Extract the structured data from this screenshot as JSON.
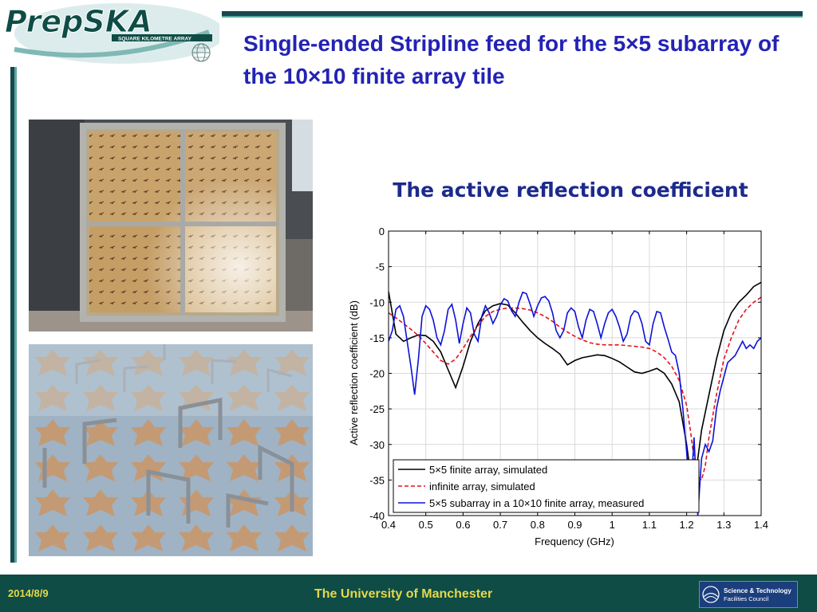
{
  "logo": {
    "name": "PrepSKA",
    "tagline": "SQUARE KILOMETRE ARRAY"
  },
  "slide": {
    "title": "Single-ended Stripline feed for the 5×5 subarray of the 10×10 finite array tile"
  },
  "chart_heading": "The active reflection coefficient",
  "chart_data": {
    "type": "line",
    "xlabel": "Frequency (GHz)",
    "ylabel": "Active reflection coefficient (dB)",
    "xlim": [
      0.4,
      1.4
    ],
    "ylim": [
      -40,
      0
    ],
    "xticks": [
      "0.4",
      "0.5",
      "0.6",
      "0.7",
      "0.8",
      "0.9",
      "1",
      "1.1",
      "1.2",
      "1.3",
      "1.4"
    ],
    "yticks": [
      "0",
      "-5",
      "-10",
      "-15",
      "-20",
      "-25",
      "-30",
      "-35",
      "-40"
    ],
    "grid": true,
    "legend_position": "bottom-left",
    "series": [
      {
        "name": "5×5 finite array, simulated",
        "color": "#000000",
        "style": "solid",
        "x": [
          0.4,
          0.42,
          0.44,
          0.46,
          0.48,
          0.5,
          0.52,
          0.54,
          0.56,
          0.58,
          0.6,
          0.62,
          0.64,
          0.66,
          0.68,
          0.7,
          0.72,
          0.74,
          0.76,
          0.78,
          0.8,
          0.82,
          0.84,
          0.86,
          0.88,
          0.9,
          0.92,
          0.94,
          0.96,
          0.98,
          1.0,
          1.02,
          1.04,
          1.06,
          1.08,
          1.1,
          1.12,
          1.14,
          1.16,
          1.18,
          1.2,
          1.21,
          1.22,
          1.23,
          1.24,
          1.26,
          1.28,
          1.3,
          1.32,
          1.34,
          1.36,
          1.38,
          1.4
        ],
        "y": [
          -8.5,
          -14.5,
          -15.5,
          -15,
          -14.6,
          -14.7,
          -15.5,
          -17,
          -19.5,
          -22,
          -19,
          -15.5,
          -13,
          -11.2,
          -10.5,
          -10.2,
          -10.4,
          -11.5,
          -12.8,
          -14,
          -15,
          -15.8,
          -16.5,
          -17.3,
          -18.8,
          -18.2,
          -17.8,
          -17.6,
          -17.4,
          -17.5,
          -17.9,
          -18.4,
          -19.1,
          -19.8,
          -20,
          -19.7,
          -19.3,
          -20,
          -21.5,
          -24,
          -30,
          -34,
          -35,
          -32,
          -28,
          -23,
          -18,
          -14,
          -11.5,
          -10,
          -9,
          -7.8,
          -7.2
        ]
      },
      {
        "name": "infinite array, simulated",
        "color": "#e0141d",
        "style": "dashed",
        "x": [
          0.4,
          0.42,
          0.44,
          0.46,
          0.48,
          0.5,
          0.52,
          0.54,
          0.56,
          0.58,
          0.6,
          0.62,
          0.64,
          0.66,
          0.68,
          0.7,
          0.72,
          0.74,
          0.76,
          0.78,
          0.8,
          0.82,
          0.84,
          0.86,
          0.88,
          0.9,
          0.92,
          0.94,
          0.96,
          0.98,
          1.0,
          1.02,
          1.04,
          1.06,
          1.08,
          1.1,
          1.12,
          1.14,
          1.16,
          1.18,
          1.2,
          1.21,
          1.22,
          1.23,
          1.24,
          1.25,
          1.26,
          1.28,
          1.3,
          1.32,
          1.34,
          1.36,
          1.38,
          1.4
        ],
        "y": [
          -11.5,
          -12.2,
          -13,
          -13.8,
          -14.7,
          -15.8,
          -17,
          -18.2,
          -18.7,
          -18,
          -16.5,
          -14.8,
          -13.3,
          -12,
          -11.3,
          -11,
          -10.8,
          -10.8,
          -10.9,
          -11.1,
          -11.5,
          -12,
          -12.7,
          -13.5,
          -14.2,
          -14.8,
          -15.3,
          -15.7,
          -15.9,
          -16,
          -16,
          -16,
          -16.1,
          -16.2,
          -16.3,
          -16.5,
          -17,
          -17.8,
          -19,
          -21,
          -24.5,
          -28,
          -32,
          -34.5,
          -35,
          -33,
          -29,
          -23,
          -18,
          -15,
          -12.5,
          -11,
          -10,
          -9.3
        ]
      },
      {
        "name": "5×5 subarray in a 10×10 finite array, measured",
        "color": "#0d12d9",
        "style": "solid",
        "x": [
          0.4,
          0.41,
          0.42,
          0.43,
          0.44,
          0.45,
          0.46,
          0.47,
          0.48,
          0.49,
          0.5,
          0.51,
          0.52,
          0.53,
          0.54,
          0.55,
          0.56,
          0.57,
          0.58,
          0.59,
          0.6,
          0.61,
          0.62,
          0.63,
          0.64,
          0.65,
          0.66,
          0.67,
          0.68,
          0.69,
          0.7,
          0.71,
          0.72,
          0.73,
          0.74,
          0.75,
          0.76,
          0.77,
          0.78,
          0.79,
          0.8,
          0.81,
          0.82,
          0.83,
          0.84,
          0.85,
          0.86,
          0.87,
          0.88,
          0.89,
          0.9,
          0.91,
          0.92,
          0.93,
          0.94,
          0.95,
          0.96,
          0.97,
          0.98,
          0.99,
          1.0,
          1.01,
          1.02,
          1.03,
          1.04,
          1.05,
          1.06,
          1.07,
          1.08,
          1.09,
          1.1,
          1.11,
          1.12,
          1.13,
          1.14,
          1.15,
          1.16,
          1.17,
          1.18,
          1.19,
          1.2,
          1.21,
          1.22,
          1.23,
          1.24,
          1.25,
          1.26,
          1.27,
          1.28,
          1.29,
          1.3,
          1.31,
          1.32,
          1.33,
          1.34,
          1.35,
          1.36,
          1.37,
          1.38,
          1.39,
          1.4
        ],
        "y": [
          -15.5,
          -14,
          -11,
          -10.5,
          -12,
          -15.5,
          -19,
          -23,
          -18,
          -12,
          -10.5,
          -11,
          -12.5,
          -15,
          -16,
          -14,
          -11,
          -10.3,
          -12.5,
          -15.8,
          -13,
          -10.8,
          -11.5,
          -14.5,
          -15.5,
          -12,
          -10.5,
          -11.5,
          -13,
          -12,
          -10.4,
          -9.5,
          -9.8,
          -11.2,
          -12,
          -10,
          -8.6,
          -8.8,
          -10.3,
          -12,
          -10.5,
          -9.4,
          -9.2,
          -9.8,
          -11.5,
          -14,
          -15,
          -14,
          -11.5,
          -10.8,
          -11.3,
          -13.5,
          -15,
          -12.5,
          -11,
          -11.3,
          -13,
          -15,
          -13,
          -11.5,
          -11,
          -12,
          -13.5,
          -15.5,
          -14.5,
          -12,
          -11.2,
          -11.5,
          -13,
          -15.5,
          -16,
          -13,
          -11.3,
          -11.5,
          -13.5,
          -15.2,
          -17,
          -17.5,
          -20,
          -25,
          -31,
          -38,
          -29,
          -40,
          -32,
          -30,
          -31,
          -29.5,
          -25,
          -22.5,
          -20.5,
          -18.5,
          -18,
          -17.5,
          -16.5,
          -15.5,
          -16.5,
          -16,
          -16.5,
          -15.5,
          -15
        ]
      }
    ]
  },
  "footer": {
    "date": "2014/8/9",
    "university": "The University of Manchester",
    "stfc_line1": "Science & Technology",
    "stfc_line2": "Facilities Council"
  }
}
